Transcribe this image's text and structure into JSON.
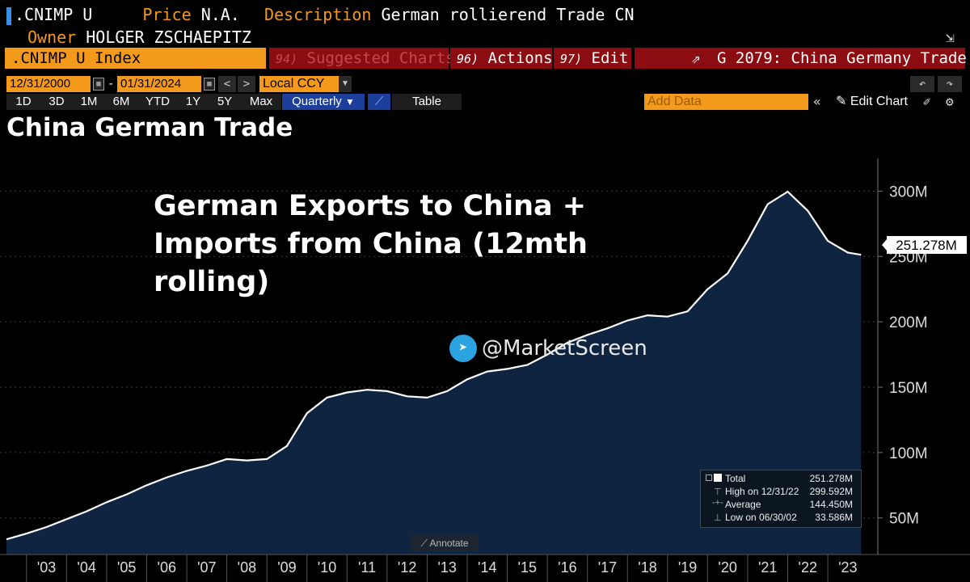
{
  "header": {
    "ticker": ".CNIMP U",
    "price_label": "Price",
    "price_value": "N.A.",
    "description_label": "Description",
    "description_value": "German rollierend Trade CN",
    "owner_label": "Owner",
    "owner_value": "HOLGER ZSCHAEPITZ"
  },
  "toolbar": {
    "index_label": ".CNIMP U Index",
    "suggested_num": "94)",
    "suggested_label": "Suggested Charts",
    "actions_num": "96)",
    "actions_label": "Actions",
    "edit_num": "97)",
    "edit_label": "Edit",
    "chart_ref": "G 2079: China Germany Trade",
    "start_date": "12/31/2000",
    "date_sep": "-",
    "end_date": "01/31/2024",
    "currency": "Local CCY",
    "periods": [
      "1D",
      "3D",
      "1M",
      "6M",
      "YTD",
      "1Y",
      "5Y",
      "Max"
    ],
    "frequency": "Quarterly",
    "table_label": "Table",
    "add_data_placeholder": "Add Data",
    "edit_chart_label": "Edit Chart",
    "annotate_label": "Annotate"
  },
  "page_title": "China German Trade",
  "annotation": {
    "line1": "German Exports to China +",
    "line2": "Imports from China (12mth",
    "line3": "rolling)"
  },
  "watermark": "@MarketScreen",
  "last_value_label": "251.278M",
  "legend": {
    "total_label": "Total",
    "total_value": "251.278M",
    "high_label": "High on 12/31/22",
    "high_value": "299.592M",
    "avg_label": "Average",
    "avg_value": "144.450M",
    "low_label": "Low on 06/30/02",
    "low_value": "33.586M"
  },
  "colors": {
    "accent_orange": "#f39a1c",
    "toolbar_red": "#8b0d12",
    "area_fill": "#0f2440",
    "line": "#ffffff"
  },
  "chart_data": {
    "type": "area",
    "title": "China German Trade",
    "series": [
      {
        "x": [
          2002.5,
          2003.0,
          2003.5,
          2004.0,
          2004.5,
          2005.0,
          2005.5,
          2006.0,
          2006.5,
          2007.0,
          2007.5,
          2008.0,
          2008.5,
          2009.0,
          2009.5,
          2010.0,
          2010.5,
          2011.0,
          2011.5,
          2012.0,
          2012.5,
          2013.0,
          2013.5,
          2014.0,
          2014.5,
          2015.0,
          2015.5,
          2016.0,
          2016.5,
          2017.0,
          2017.5,
          2018.0,
          2018.5,
          2019.0,
          2019.5,
          2020.0,
          2020.5,
          2021.0,
          2021.5,
          2022.0,
          2022.5,
          2023.0,
          2023.5,
          2023.83
        ],
        "values": [
          33.6,
          38,
          43,
          49,
          55,
          62,
          68,
          75,
          81,
          86,
          90,
          95,
          94,
          95,
          105,
          130,
          142,
          146,
          148,
          147,
          143,
          142,
          147,
          156,
          162,
          164,
          167,
          175,
          184,
          190,
          195,
          201,
          205,
          204,
          208,
          225,
          237,
          262,
          290,
          299.6,
          285,
          262,
          253,
          251.278
        ]
      }
    ],
    "x_tick_labels": [
      "'03",
      "'04",
      "'05",
      "'06",
      "'07",
      "'08",
      "'09",
      "'10",
      "'11",
      "'12",
      "'13",
      "'14",
      "'15",
      "'16",
      "'17",
      "'18",
      "'19",
      "'20",
      "'21",
      "'22",
      "'23"
    ],
    "y_tick_labels": [
      "50M",
      "100M",
      "150M",
      "200M",
      "250M",
      "300M"
    ],
    "y_ticks": [
      50,
      100,
      150,
      200,
      250,
      300
    ],
    "ylim": [
      22,
      325
    ],
    "xlim": [
      2002.5,
      2024.25
    ],
    "grid": true,
    "legend_position": "bottom-right"
  }
}
